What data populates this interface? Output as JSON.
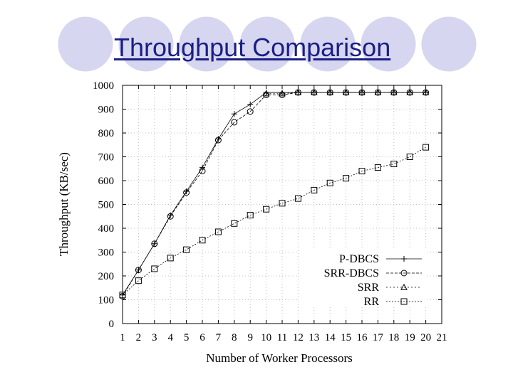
{
  "slide": {
    "title": "Throughput Comparison"
  },
  "colors": {
    "title": "#1a1f86",
    "circles": "#d6d6f0",
    "ink": "#000000",
    "grid": "#bfbfbf"
  },
  "chart_data": {
    "type": "line",
    "xlabel": "Number of Worker Processors",
    "ylabel": "Throughput (KB/sec)",
    "xlim": [
      1,
      21
    ],
    "ylim": [
      0,
      1000
    ],
    "xticks": [
      1,
      2,
      3,
      4,
      5,
      6,
      7,
      8,
      9,
      10,
      11,
      12,
      13,
      14,
      15,
      16,
      17,
      18,
      19,
      20,
      21
    ],
    "yticks": [
      0,
      100,
      200,
      300,
      400,
      500,
      600,
      700,
      800,
      900,
      1000
    ],
    "grid": true,
    "legend_position": "bottom-right",
    "series": [
      {
        "name": "P-DBCS",
        "marker": "plus",
        "x": [
          1,
          2,
          3,
          4,
          5,
          6,
          7,
          8,
          9,
          10,
          11,
          12,
          13,
          14,
          15,
          16,
          17,
          18,
          19,
          20
        ],
        "y": [
          120,
          225,
          335,
          455,
          555,
          655,
          775,
          880,
          920,
          970,
          970,
          970,
          970,
          970,
          970,
          970,
          970,
          970,
          970,
          970
        ]
      },
      {
        "name": "SRR-DBCS",
        "marker": "circle",
        "x": [
          1,
          2,
          3,
          4,
          5,
          6,
          7,
          8,
          9,
          10,
          11,
          12,
          13,
          14,
          15,
          16,
          17,
          18,
          19,
          20
        ],
        "y": [
          115,
          225,
          335,
          450,
          550,
          640,
          770,
          845,
          890,
          960,
          960,
          970,
          970,
          970,
          970,
          970,
          970,
          970,
          970,
          970
        ]
      },
      {
        "name": "SRR",
        "marker": "triangle",
        "x": [
          10,
          11,
          12,
          13,
          14,
          15,
          16,
          17,
          18,
          19,
          20
        ],
        "y": [
          965,
          965,
          970,
          970,
          970,
          970,
          970,
          970,
          970,
          970,
          970
        ]
      },
      {
        "name": "RR",
        "marker": "square",
        "x": [
          1,
          2,
          3,
          4,
          5,
          6,
          7,
          8,
          9,
          10,
          11,
          12,
          13,
          14,
          15,
          16,
          17,
          18,
          19,
          20
        ],
        "y": [
          120,
          180,
          230,
          275,
          310,
          350,
          385,
          420,
          455,
          480,
          505,
          525,
          560,
          590,
          610,
          640,
          655,
          670,
          700,
          740
        ]
      }
    ]
  }
}
